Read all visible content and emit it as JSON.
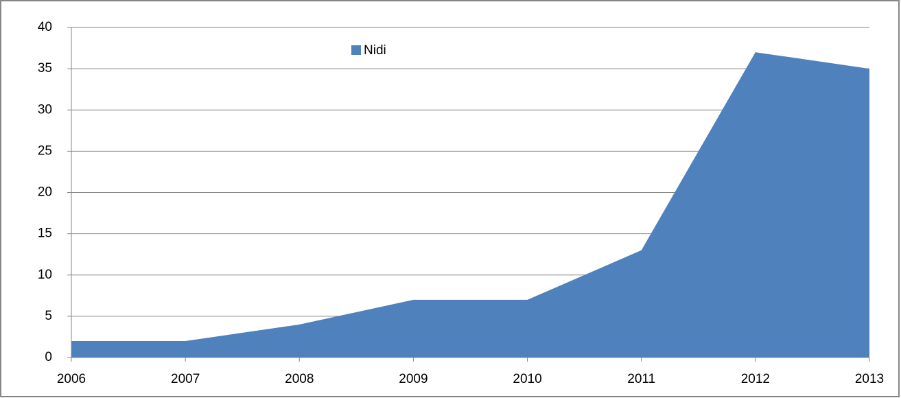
{
  "chart_data": {
    "type": "area",
    "x": [
      2006,
      2007,
      2008,
      2009,
      2010,
      2011,
      2012,
      2013
    ],
    "series": [
      {
        "name": "Nidi",
        "color": "#4f81bd",
        "values": [
          2,
          2,
          4,
          7,
          7,
          13,
          37,
          35
        ]
      }
    ],
    "xlim": [
      2006,
      2013
    ],
    "xticks": [
      2006,
      2007,
      2008,
      2009,
      2010,
      2011,
      2012,
      2013
    ],
    "ylim": [
      0,
      40
    ],
    "yticks": [
      0,
      5,
      10,
      15,
      20,
      25,
      30,
      35,
      40
    ],
    "grid": true,
    "legend": "top"
  }
}
